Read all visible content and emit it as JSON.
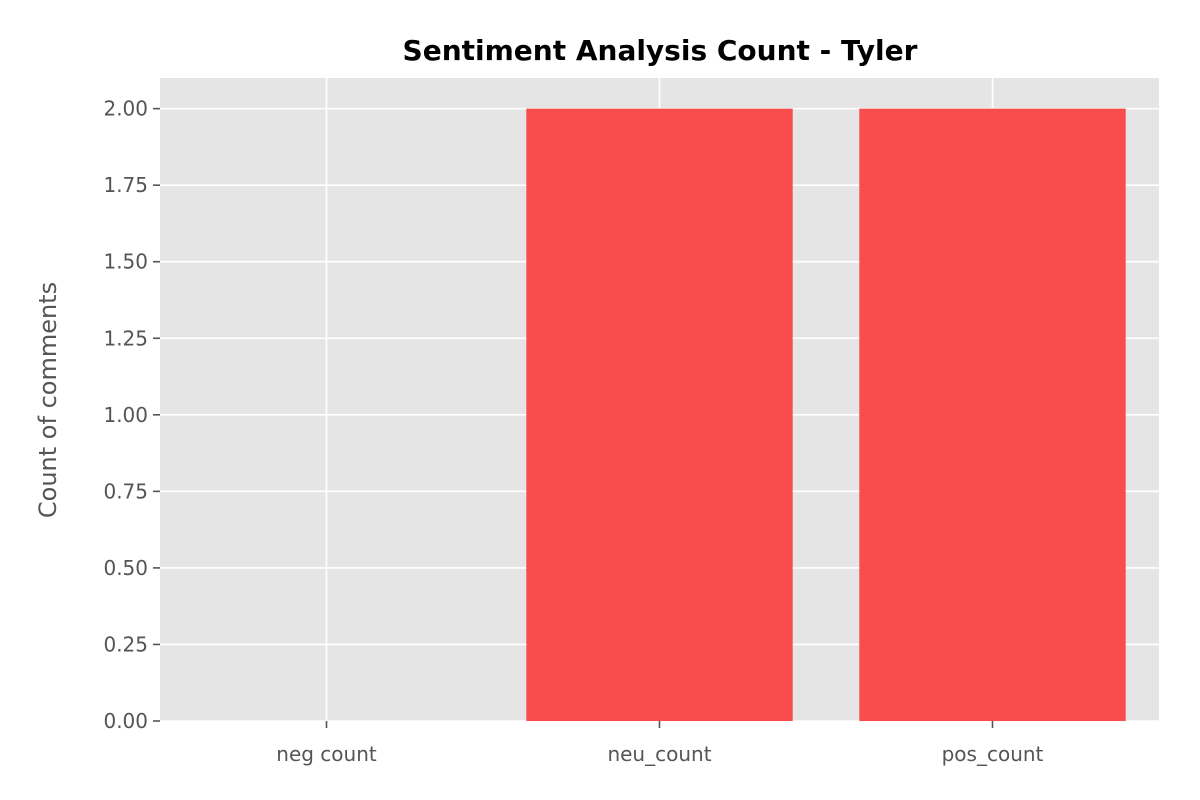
{
  "chart_data": {
    "type": "bar",
    "title": "Sentiment Analysis Count - Tyler",
    "xlabel": "",
    "ylabel": "Count of comments",
    "categories": [
      "neg count",
      "neu_count",
      "pos_count"
    ],
    "values": [
      0,
      2,
      2
    ],
    "ylim": [
      0,
      2.1
    ],
    "yticks": [
      "0.00",
      "0.25",
      "0.50",
      "0.75",
      "1.00",
      "1.25",
      "1.50",
      "1.75",
      "2.00"
    ],
    "grid": true,
    "legend": "none",
    "colors": {
      "bar": "#f94848",
      "plot_background": "#e5e5e5",
      "grid": "#ffffff"
    }
  }
}
